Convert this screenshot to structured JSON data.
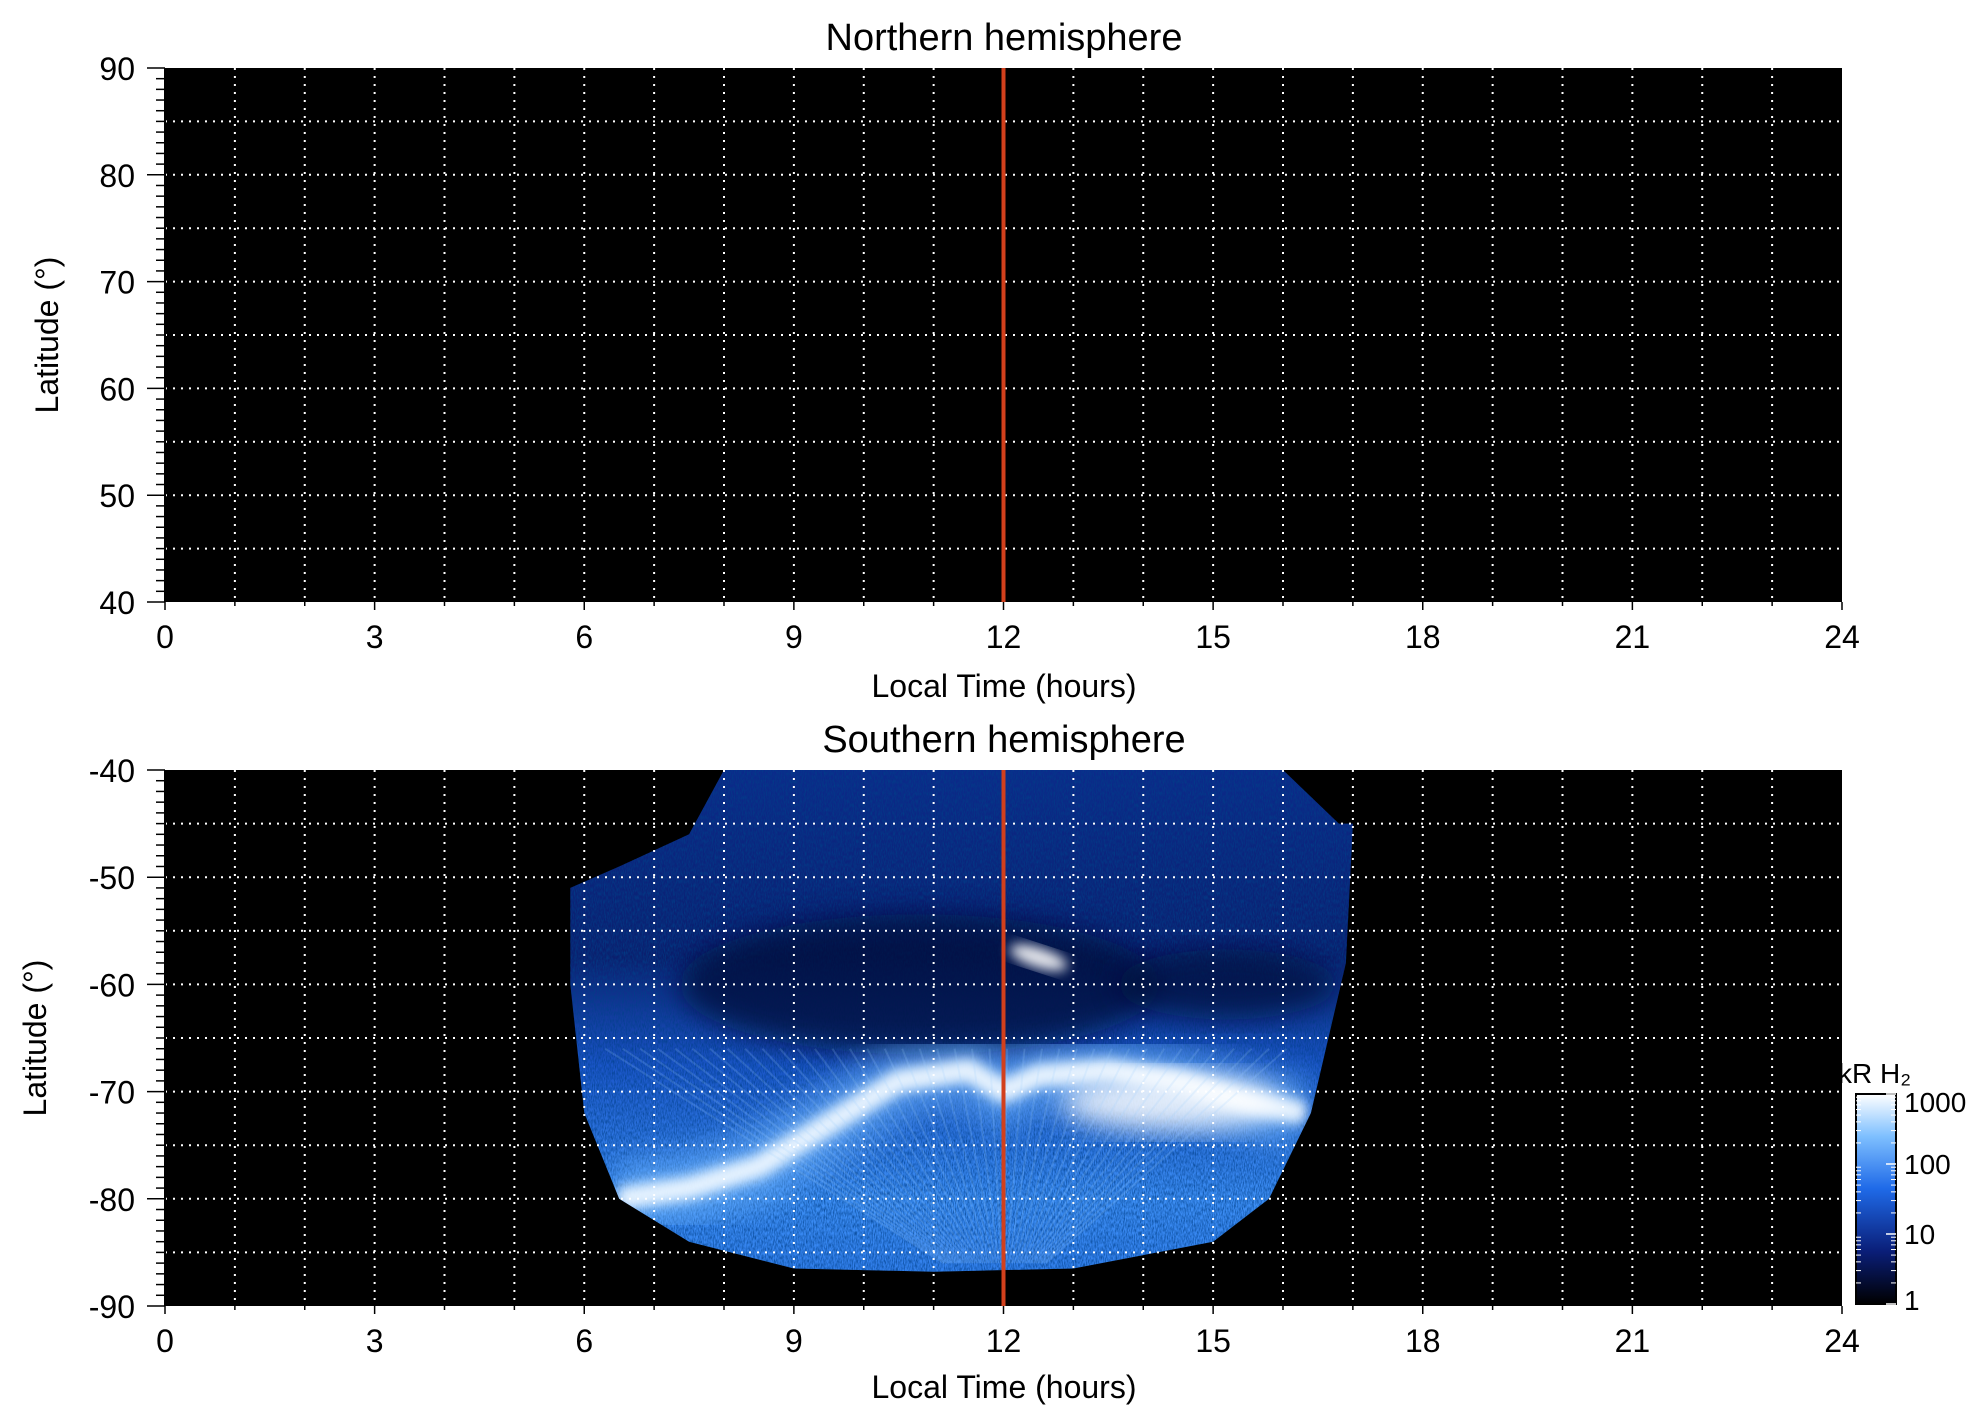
{
  "chart_data": [
    {
      "type": "heatmap",
      "title": "Northern hemisphere",
      "xlabel": "Local Time (hours)",
      "ylabel": "Latitude (°)",
      "xlim": [
        0,
        24
      ],
      "ylim": [
        40,
        90
      ],
      "xticks": [
        "0",
        "3",
        "6",
        "9",
        "12",
        "15",
        "18",
        "21",
        "24"
      ],
      "yticks": [
        "90",
        "80",
        "70",
        "60",
        "50",
        "40"
      ],
      "grid": true,
      "background": "#000000",
      "marker_line": {
        "x": 12,
        "color": "#d2401c"
      },
      "emission": "none"
    },
    {
      "type": "heatmap",
      "title": "Southern hemisphere",
      "xlabel": "Local Time (hours)",
      "ylabel": "Latitude (°)",
      "xlim": [
        0,
        24
      ],
      "ylim": [
        -90,
        -40
      ],
      "xticks": [
        "0",
        "3",
        "6",
        "9",
        "12",
        "15",
        "18",
        "21",
        "24"
      ],
      "yticks": [
        "-40",
        "-50",
        "-60",
        "-70",
        "-80",
        "-90"
      ],
      "grid": true,
      "background": "#000000",
      "marker_line": {
        "x": 12,
        "color": "#d2401c"
      },
      "coverage_boundary": [
        [
          5.8,
          -51
        ],
        [
          6.5,
          -49
        ],
        [
          7.5,
          -46
        ],
        [
          8.0,
          -40
        ],
        [
          16.0,
          -40
        ],
        [
          16.8,
          -45
        ],
        [
          17.0,
          -45
        ],
        [
          16.9,
          -58
        ],
        [
          16.4,
          -72
        ],
        [
          15.8,
          -80
        ],
        [
          15.0,
          -84
        ],
        [
          13.0,
          -86.5
        ],
        [
          11.0,
          -86.8
        ],
        [
          9.0,
          -86.5
        ],
        [
          7.5,
          -84
        ],
        [
          6.5,
          -80
        ],
        [
          6.0,
          -72
        ],
        [
          5.8,
          -60
        ]
      ],
      "main_oval": [
        [
          6.5,
          -80
        ],
        [
          7.5,
          -79
        ],
        [
          8.5,
          -77
        ],
        [
          9.5,
          -73
        ],
        [
          10.5,
          -69
        ],
        [
          11.5,
          -68
        ],
        [
          12.0,
          -70
        ],
        [
          12.5,
          -68.5
        ],
        [
          13.5,
          -68
        ],
        [
          14.5,
          -69
        ],
        [
          15.5,
          -71
        ],
        [
          16.3,
          -72
        ]
      ],
      "bright_spot": {
        "x": 12.3,
        "y": -57.5
      },
      "colorbar": {
        "label": "kR H₂",
        "scale": "log",
        "ticks": [
          "1000",
          "100",
          "10",
          "1"
        ],
        "colors": [
          "#000000",
          "#0a1e78",
          "#1f6ae8",
          "#7fc0ff",
          "#ffffff"
        ]
      }
    }
  ]
}
